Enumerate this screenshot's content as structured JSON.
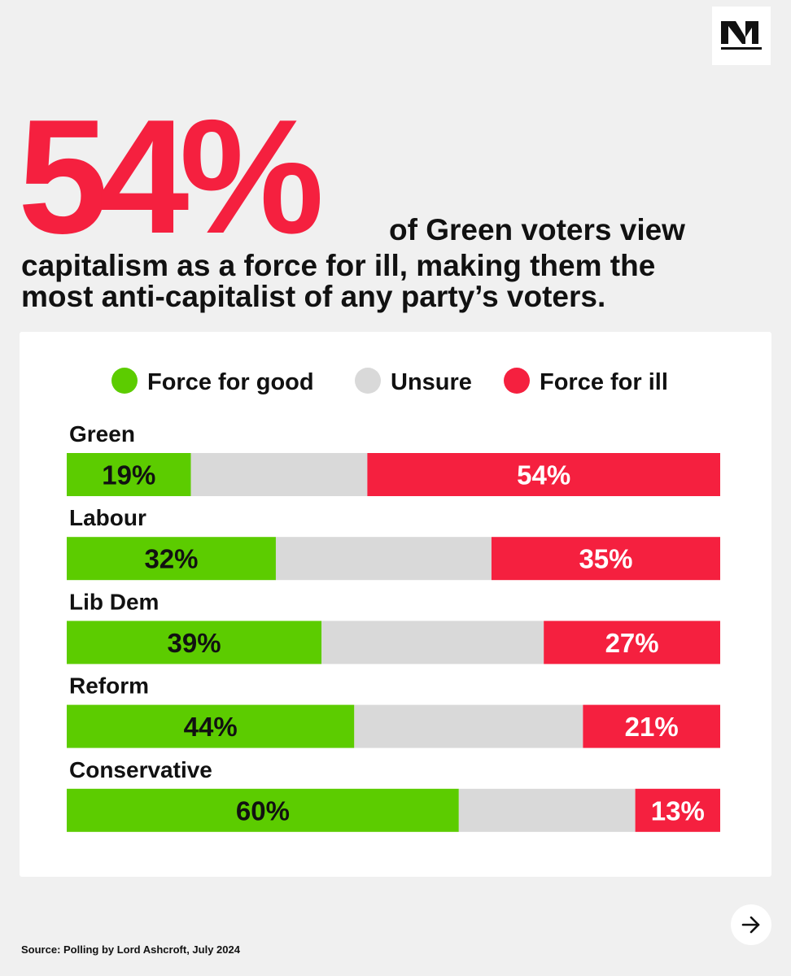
{
  "header": {
    "logo_icon": "n-logo-icon",
    "big_stat": "54%",
    "headline_line1": "of Green voters view",
    "headline_line2": "capitalism as a force for ill, making them the",
    "headline_line3": "most anti-capitalist of any party’s voters."
  },
  "chart_data": {
    "type": "bar",
    "orientation": "horizontal",
    "stacked": true,
    "normalized_to_100": true,
    "categories": [
      "Green",
      "Labour",
      "Lib Dem",
      "Reform",
      "Conservative"
    ],
    "series": [
      {
        "name": "Force for good",
        "color": "#5ccc00",
        "values": [
          19,
          32,
          39,
          44,
          60
        ],
        "label_color": "#111111"
      },
      {
        "name": "Unsure",
        "color": "#d9d9d9",
        "values": [
          27,
          33,
          34,
          35,
          27
        ]
      },
      {
        "name": "Force for ill",
        "color": "#f5203f",
        "values": [
          54,
          35,
          27,
          21,
          13
        ],
        "label_color": "#ffffff"
      }
    ],
    "data_labels": {
      "Force for good": [
        "19%",
        "32%",
        "39%",
        "44%",
        "60%"
      ],
      "Force for ill": [
        "54%",
        "35%",
        "27%",
        "21%",
        "13%"
      ]
    },
    "legend_position": "top-center",
    "grid": false
  },
  "footer": {
    "source": "Source: Polling by Lord Ashcroft, July 2024",
    "next_icon": "arrow-right-icon"
  }
}
